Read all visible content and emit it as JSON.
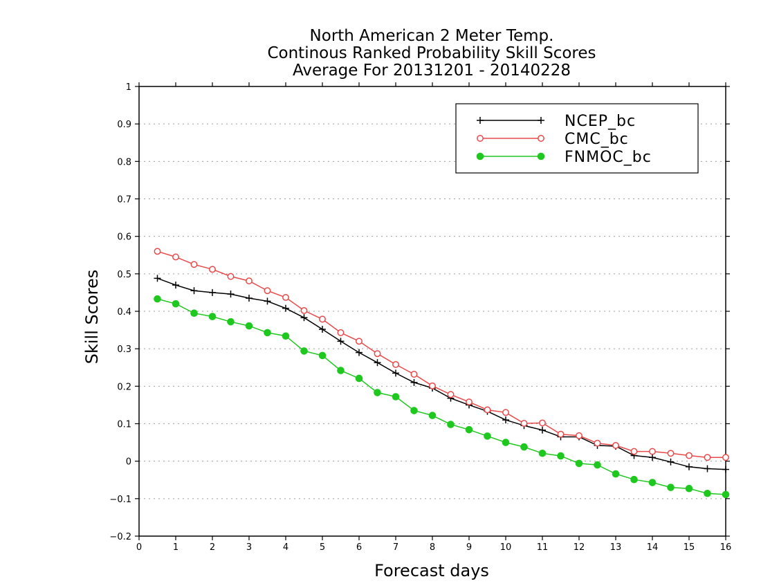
{
  "chart_data": {
    "type": "line",
    "title": [
      "North American 2 Meter Temp.",
      "Continous Ranked Probability Skill Scores",
      "Average For 20131201 - 20140228"
    ],
    "xlabel": "Forecast days",
    "ylabel": "Skill Scores",
    "xlim": [
      0,
      16
    ],
    "ylim": [
      -0.2,
      1
    ],
    "xticks": [
      0,
      1,
      2,
      3,
      4,
      5,
      6,
      7,
      8,
      9,
      10,
      11,
      12,
      13,
      14,
      15,
      16
    ],
    "yticks": [
      -0.2,
      -0.1,
      0,
      0.1,
      0.2,
      0.3,
      0.4,
      0.5,
      0.6,
      0.7,
      0.8,
      0.9,
      1
    ],
    "ytick_labels": [
      "−0.2",
      "−0.1",
      "0",
      "0.1",
      "0.2",
      "0.3",
      "0.4",
      "0.5",
      "0.6",
      "0.7",
      "0.8",
      "0.9",
      "1"
    ],
    "grid": "horizontal dotted",
    "legend_position": "top-right",
    "x": [
      0.5,
      1,
      1.5,
      2,
      2.5,
      3,
      3.5,
      4,
      4.5,
      5,
      5.5,
      6,
      6.5,
      7,
      7.5,
      8,
      8.5,
      9,
      9.5,
      10,
      10.5,
      11,
      11.5,
      12,
      12.5,
      13,
      13.5,
      14,
      14.5,
      15,
      15.5,
      16
    ],
    "series": [
      {
        "name": "NCEP_bc",
        "color": "#000000",
        "marker": "plus",
        "values": [
          0.488,
          0.47,
          0.455,
          0.45,
          0.446,
          0.435,
          0.427,
          0.408,
          0.383,
          0.352,
          0.32,
          0.29,
          0.263,
          0.235,
          0.21,
          0.195,
          0.168,
          0.15,
          0.133,
          0.11,
          0.095,
          0.083,
          0.065,
          0.065,
          0.042,
          0.04,
          0.015,
          0.01,
          -0.002,
          -0.015,
          -0.02,
          -0.022
        ]
      },
      {
        "name": "CMC_bc",
        "color": "#e84848",
        "marker": "open-circle",
        "values": [
          0.56,
          0.545,
          0.525,
          0.512,
          0.493,
          0.481,
          0.455,
          0.437,
          0.402,
          0.379,
          0.343,
          0.32,
          0.287,
          0.258,
          0.232,
          0.201,
          0.178,
          0.158,
          0.137,
          0.13,
          0.101,
          0.102,
          0.072,
          0.068,
          0.048,
          0.042,
          0.026,
          0.026,
          0.021,
          0.015,
          0.01,
          0.01
        ]
      },
      {
        "name": "FNMOC_bc",
        "color": "#1ec81e",
        "marker": "filled-circle",
        "values": [
          0.433,
          0.42,
          0.395,
          0.386,
          0.372,
          0.361,
          0.343,
          0.334,
          0.294,
          0.282,
          0.242,
          0.221,
          0.183,
          0.172,
          0.135,
          0.122,
          0.098,
          0.084,
          0.067,
          0.05,
          0.038,
          0.021,
          0.014,
          -0.006,
          -0.01,
          -0.034,
          -0.049,
          -0.057,
          -0.07,
          -0.073,
          -0.086,
          -0.089
        ]
      }
    ]
  }
}
